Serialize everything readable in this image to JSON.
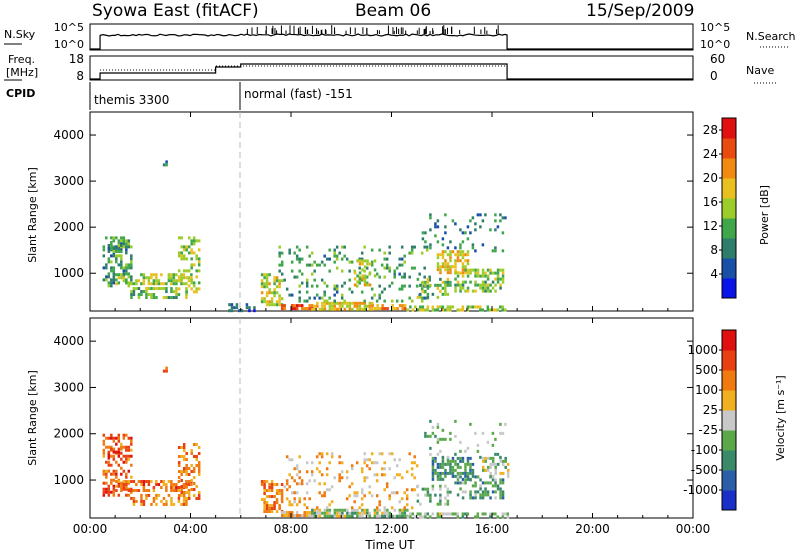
{
  "header": {
    "station": "Syowa East (fitACF)",
    "beam": "Beam 06",
    "date": "15/Sep/2009"
  },
  "status_panels": {
    "nsky_label": "N.Sky",
    "nsky_ticks": [
      "10^5",
      "10^0"
    ],
    "nsearch_label": "N.Search",
    "freq_label_1": "Freq.",
    "freq_label_2": "[MHz]",
    "freq_ticks": [
      "18",
      "8"
    ],
    "nave_ticks": [
      "60",
      "0"
    ],
    "nave_label": "Nave",
    "cpid_label": "CPID",
    "cpid_segments": [
      "themis 3300",
      "normal (fast) -151"
    ]
  },
  "chart_data": [
    {
      "type": "heatmap",
      "panel": "power",
      "ylabel": "Slant Range [km]",
      "xlabel": "",
      "x_ticks": [
        "00:00",
        "04:00",
        "08:00",
        "12:00",
        "16:00",
        "20:00",
        "00:00"
      ],
      "xlim": [
        0,
        24
      ],
      "y_ticks": [
        "1000",
        "2000",
        "3000",
        "4000"
      ],
      "ylim": [
        180,
        4500
      ],
      "colorbar": {
        "label": "Power [dB]",
        "ticks": [
          "4",
          "8",
          "12",
          "16",
          "20",
          "24",
          "28"
        ],
        "range": [
          0,
          30
        ],
        "colors": [
          "#0a14e8",
          "#1a4fa8",
          "#2e7d6a",
          "#3fa64a",
          "#9bcc2a",
          "#e8c020",
          "#f08a10",
          "#e84a10",
          "#e01010"
        ]
      },
      "regions": [
        {
          "t0": 0.5,
          "t1": 1.6,
          "r0": 700,
          "r1": 1800,
          "level": 0.35,
          "dens": 0.45
        },
        {
          "t0": 1.0,
          "t1": 4.0,
          "r0": 800,
          "r1": 1000,
          "level": 0.5,
          "dens": 0.55
        },
        {
          "t0": 1.5,
          "t1": 3.8,
          "r0": 500,
          "r1": 700,
          "level": 0.45,
          "dens": 0.45
        },
        {
          "t0": 3.5,
          "t1": 4.3,
          "r0": 600,
          "r1": 1800,
          "level": 0.5,
          "dens": 0.4
        },
        {
          "t0": 0.7,
          "t1": 1.2,
          "r0": 1450,
          "r1": 1700,
          "level": 0.35,
          "dens": 0.55
        },
        {
          "t0": 5.5,
          "t1": 6.5,
          "r0": 200,
          "r1": 350,
          "level": 0.2,
          "dens": 0.4
        },
        {
          "t0": 6.8,
          "t1": 7.6,
          "r0": 300,
          "r1": 1000,
          "level": 0.55,
          "dens": 0.55
        },
        {
          "t0": 7.6,
          "t1": 8.8,
          "r0": 220,
          "r1": 330,
          "level": 0.8,
          "dens": 0.75
        },
        {
          "t0": 8.8,
          "t1": 11.2,
          "r0": 240,
          "r1": 380,
          "level": 0.6,
          "dens": 0.75
        },
        {
          "t0": 11.2,
          "t1": 12.6,
          "r0": 220,
          "r1": 330,
          "level": 0.7,
          "dens": 0.7
        },
        {
          "t0": 12.6,
          "t1": 16.6,
          "r0": 200,
          "r1": 300,
          "level": 0.5,
          "dens": 0.6
        },
        {
          "t0": 7.5,
          "t1": 13.5,
          "r0": 400,
          "r1": 1600,
          "level": 0.35,
          "dens": 0.18
        },
        {
          "t0": 10.5,
          "t1": 11.3,
          "r0": 700,
          "r1": 1300,
          "level": 0.55,
          "dens": 0.35
        },
        {
          "t0": 13.0,
          "t1": 14.3,
          "r0": 500,
          "r1": 900,
          "level": 0.45,
          "dens": 0.35
        },
        {
          "t0": 13.8,
          "t1": 15.0,
          "r0": 1000,
          "r1": 1500,
          "level": 0.6,
          "dens": 0.6
        },
        {
          "t0": 14.5,
          "t1": 16.4,
          "r0": 600,
          "r1": 1100,
          "level": 0.45,
          "dens": 0.5
        },
        {
          "t0": 13.2,
          "t1": 16.5,
          "r0": 1500,
          "r1": 2300,
          "level": 0.3,
          "dens": 0.12
        },
        {
          "t0": 2.9,
          "t1": 3.0,
          "r0": 3350,
          "r1": 3450,
          "level": 0.3,
          "dens": 0.8
        }
      ]
    },
    {
      "type": "heatmap",
      "panel": "velocity",
      "ylabel": "Slant Range [km]",
      "xlabel": "Time UT",
      "x_ticks": [
        "00:00",
        "04:00",
        "08:00",
        "12:00",
        "16:00",
        "20:00",
        "00:00"
      ],
      "xlim": [
        0,
        24
      ],
      "y_ticks": [
        "1000",
        "2000",
        "3000",
        "4000"
      ],
      "ylim": [
        180,
        4500
      ],
      "colorbar": {
        "label": "Velocity [m s⁻¹]",
        "ticks": [
          "1000",
          "500",
          "100",
          "25",
          "-25",
          "-100",
          "-500",
          "-1000"
        ],
        "colors": [
          "#1a2fc8",
          "#2a5fa8",
          "#3a8a6a",
          "#5aa84a",
          "#c8c8c8",
          "#f0b020",
          "#f07a10",
          "#e84010",
          "#e01010"
        ]
      },
      "regions": [
        {
          "t0": 0.5,
          "t1": 1.6,
          "r0": 700,
          "r1": 2000,
          "level": 0.8,
          "dens": 0.45
        },
        {
          "t0": 1.0,
          "t1": 4.0,
          "r0": 800,
          "r1": 1000,
          "level": 0.75,
          "dens": 0.55
        },
        {
          "t0": 1.5,
          "t1": 3.8,
          "r0": 500,
          "r1": 700,
          "level": 0.7,
          "dens": 0.45
        },
        {
          "t0": 3.5,
          "t1": 4.3,
          "r0": 600,
          "r1": 1800,
          "level": 0.72,
          "dens": 0.4
        },
        {
          "t0": 0.7,
          "t1": 1.2,
          "r0": 1450,
          "r1": 1700,
          "level": 0.85,
          "dens": 0.55
        },
        {
          "t0": 6.8,
          "t1": 7.6,
          "r0": 300,
          "r1": 1000,
          "level": 0.72,
          "dens": 0.55
        },
        {
          "t0": 7.6,
          "t1": 8.8,
          "r0": 220,
          "r1": 330,
          "level": 0.62,
          "dens": 0.75
        },
        {
          "t0": 8.8,
          "t1": 12.6,
          "r0": 220,
          "r1": 380,
          "level": 0.45,
          "dens": 0.75
        },
        {
          "t0": 12.6,
          "t1": 16.6,
          "r0": 200,
          "r1": 300,
          "level": 0.42,
          "dens": 0.6
        },
        {
          "t0": 7.5,
          "t1": 13.0,
          "r0": 400,
          "r1": 1600,
          "level": 0.62,
          "dens": 0.15
        },
        {
          "t0": 13.0,
          "t1": 14.3,
          "r0": 500,
          "r1": 900,
          "level": 0.4,
          "dens": 0.3
        },
        {
          "t0": 13.6,
          "t1": 15.2,
          "r0": 1000,
          "r1": 1500,
          "level": 0.3,
          "dens": 0.6
        },
        {
          "t0": 14.5,
          "t1": 16.4,
          "r0": 600,
          "r1": 1100,
          "level": 0.32,
          "dens": 0.5
        },
        {
          "t0": 15.6,
          "t1": 16.6,
          "r0": 1100,
          "r1": 1500,
          "level": 0.45,
          "dens": 0.5
        },
        {
          "t0": 13.2,
          "t1": 16.5,
          "r0": 1500,
          "r1": 2300,
          "level": 0.4,
          "dens": 0.1
        },
        {
          "t0": 2.9,
          "t1": 3.0,
          "r0": 3350,
          "r1": 3450,
          "level": 0.8,
          "dens": 0.8
        }
      ]
    }
  ]
}
